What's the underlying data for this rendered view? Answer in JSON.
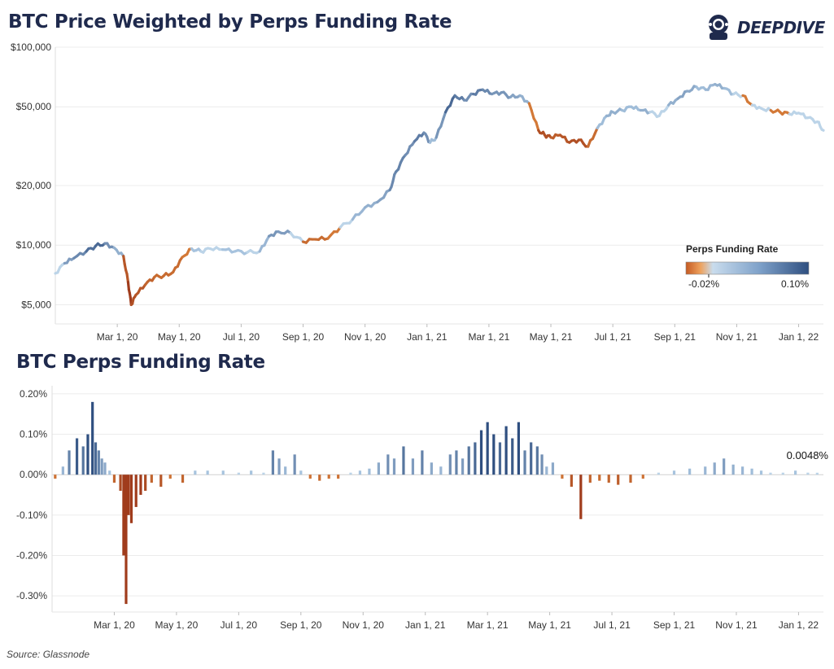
{
  "header": {
    "title": "BTC Price Weighted by Perps Funding Rate",
    "brand": "DEEPDIVE"
  },
  "lower": {
    "title": "BTC Perps Funding Rate"
  },
  "source": "Source: Glassnode",
  "colors": {
    "navy": "#1f2a4d",
    "neg_dark": "#a03c1c",
    "neg_mid": "#d2742f",
    "neutral": "#bcd4e8",
    "pos_mid": "#6f93bf",
    "pos_dark": "#2f4f80"
  },
  "chart_data": [
    {
      "type": "line",
      "title": "BTC Price Weighted by Perps Funding Rate",
      "yscale": "log",
      "ylim": [
        4000,
        100000
      ],
      "yticks": [
        5000,
        10000,
        20000,
        50000,
        100000
      ],
      "ytick_labels": [
        "$5,000",
        "$10,000",
        "$20,000",
        "$50,000",
        "$100,000"
      ],
      "xlim": [
        0,
        24.8
      ],
      "xticks": [
        2,
        4,
        6,
        8,
        10,
        12,
        14,
        16,
        18,
        20,
        22,
        24
      ],
      "xtick_labels": [
        "Mar 1, 20",
        "May 1, 20",
        "Jul 1, 20",
        "Sep 1, 20",
        "Nov 1, 20",
        "Jan 1, 21",
        "Mar 1, 21",
        "May 1, 21",
        "Jul 1, 21",
        "Sep 1, 21",
        "Nov 1, 21",
        "Jan 1, 22"
      ],
      "x_unit": "months since Jan 1, 2020",
      "legend": {
        "title": "Perps Funding Rate",
        "min_label": "-0.02%",
        "max_label": "0.10%",
        "placement": "lower-right"
      },
      "x": [
        0,
        0.3,
        0.6,
        1.0,
        1.3,
        1.6,
        1.9,
        2.2,
        2.35,
        2.45,
        2.6,
        2.9,
        3.2,
        3.5,
        3.8,
        4.1,
        4.4,
        4.7,
        5.0,
        5.4,
        5.8,
        6.2,
        6.6,
        6.9,
        7.2,
        7.6,
        8.0,
        8.4,
        8.8,
        9.2,
        9.6,
        10.0,
        10.4,
        10.8,
        11.0,
        11.3,
        11.6,
        11.9,
        12.1,
        12.3,
        12.6,
        12.9,
        13.2,
        13.5,
        13.8,
        14.1,
        14.4,
        14.7,
        15.0,
        15.3,
        15.6,
        15.8,
        16.0,
        16.3,
        16.6,
        16.9,
        17.2,
        17.5,
        17.8,
        18.0,
        18.3,
        18.6,
        18.9,
        19.2,
        19.5,
        19.8,
        20.1,
        20.4,
        20.7,
        21.0,
        21.3,
        21.6,
        21.9,
        22.2,
        22.5,
        22.8,
        23.1,
        23.4,
        23.7,
        24.0,
        24.3,
        24.6,
        24.8
      ],
      "y": [
        7200,
        8100,
        8600,
        9300,
        9900,
        10200,
        9700,
        8800,
        6500,
        5000,
        5600,
        6300,
        6900,
        7000,
        7300,
        8700,
        9600,
        9300,
        9600,
        9500,
        9300,
        9200,
        9300,
        11100,
        11700,
        11500,
        10400,
        10700,
        10800,
        12300,
        13500,
        15500,
        16500,
        19000,
        23500,
        28500,
        33500,
        37000,
        33000,
        35000,
        47000,
        57000,
        54000,
        58000,
        61000,
        58000,
        59000,
        56000,
        57000,
        52000,
        38000,
        36000,
        35000,
        36000,
        33000,
        34000,
        31500,
        39000,
        45000,
        47000,
        48000,
        50000,
        48000,
        47000,
        45000,
        51000,
        55000,
        60000,
        63000,
        61000,
        65000,
        62000,
        58000,
        57000,
        51000,
        49000,
        48000,
        47000,
        46000,
        46500,
        44000,
        42000,
        38000
      ],
      "funding_rate_pct": [
        -0.01,
        0.03,
        0.05,
        0.06,
        0.09,
        0.07,
        0.03,
        0.02,
        -0.08,
        -0.04,
        -0.03,
        -0.03,
        -0.01,
        -0.02,
        -0.01,
        -0.02,
        0.01,
        0.01,
        0.0,
        0.01,
        0.01,
        0.01,
        0.0,
        0.04,
        0.05,
        0.03,
        -0.01,
        -0.02,
        -0.01,
        0.0,
        0.01,
        0.03,
        0.02,
        0.05,
        0.06,
        0.06,
        0.04,
        0.09,
        0.01,
        0.02,
        0.07,
        0.09,
        0.04,
        0.06,
        0.07,
        0.04,
        0.05,
        0.04,
        0.03,
        0.02,
        -0.03,
        -0.04,
        -0.03,
        -0.02,
        -0.04,
        -0.03,
        -0.04,
        0.01,
        0.02,
        0.03,
        0.02,
        0.01,
        0.02,
        0.03,
        -0.01,
        0.02,
        0.03,
        0.04,
        0.02,
        0.01,
        0.03,
        0.02,
        0.01,
        0.0,
        -0.01,
        0.01,
        0.0,
        -0.01,
        0.0,
        0.01,
        0.0,
        0.01,
        0.0
      ]
    },
    {
      "type": "bar",
      "title": "BTC Perps Funding Rate",
      "ylim": [
        -0.34,
        0.22
      ],
      "yticks": [
        -0.3,
        -0.2,
        -0.1,
        0.0,
        0.1,
        0.2
      ],
      "ytick_labels": [
        "-0.30%",
        "-0.20%",
        "-0.10%",
        "0.00%",
        "0.10%",
        "0.20%"
      ],
      "xlim": [
        0,
        24.8
      ],
      "xticks": [
        2,
        4,
        6,
        8,
        10,
        12,
        14,
        16,
        18,
        20,
        22,
        24
      ],
      "xtick_labels": [
        "Mar 1, 20",
        "May 1, 20",
        "Jul 1, 20",
        "Sep 1, 20",
        "Nov 1, 20",
        "Jan 1, 21",
        "Mar 1, 21",
        "May 1, 21",
        "Jul 1, 21",
        "Sep 1, 21",
        "Nov 1, 21",
        "Jan 1, 22"
      ],
      "last_value_label": "0.0048%",
      "x": [
        0.1,
        0.35,
        0.55,
        0.8,
        1.0,
        1.15,
        1.3,
        1.4,
        1.5,
        1.6,
        1.7,
        1.85,
        2.0,
        2.2,
        2.3,
        2.38,
        2.46,
        2.55,
        2.7,
        2.85,
        3.0,
        3.2,
        3.5,
        3.8,
        4.2,
        4.6,
        5.0,
        5.5,
        6.0,
        6.4,
        6.8,
        7.1,
        7.3,
        7.5,
        7.8,
        8.0,
        8.3,
        8.6,
        8.9,
        9.2,
        9.6,
        9.9,
        10.2,
        10.5,
        10.8,
        11.0,
        11.3,
        11.6,
        11.9,
        12.2,
        12.5,
        12.8,
        13.0,
        13.2,
        13.4,
        13.6,
        13.8,
        14.0,
        14.2,
        14.4,
        14.6,
        14.8,
        15.0,
        15.2,
        15.4,
        15.6,
        15.75,
        15.9,
        16.1,
        16.4,
        16.7,
        17.0,
        17.3,
        17.6,
        17.9,
        18.2,
        18.6,
        19.0,
        19.5,
        20.0,
        20.5,
        21.0,
        21.3,
        21.6,
        21.9,
        22.2,
        22.5,
        22.8,
        23.1,
        23.5,
        23.9,
        24.3,
        24.6
      ],
      "values": [
        -0.01,
        0.02,
        0.06,
        0.09,
        0.07,
        0.1,
        0.18,
        0.08,
        0.06,
        0.04,
        0.03,
        0.01,
        -0.02,
        -0.04,
        -0.2,
        -0.32,
        -0.1,
        -0.12,
        -0.08,
        -0.05,
        -0.04,
        -0.02,
        -0.03,
        -0.01,
        -0.02,
        0.01,
        0.01,
        0.01,
        0.005,
        0.01,
        0.005,
        0.06,
        0.04,
        0.02,
        0.05,
        0.01,
        -0.01,
        -0.015,
        -0.01,
        -0.01,
        0.005,
        0.01,
        0.015,
        0.03,
        0.05,
        0.04,
        0.07,
        0.04,
        0.06,
        0.03,
        0.02,
        0.05,
        0.06,
        0.04,
        0.07,
        0.08,
        0.11,
        0.13,
        0.1,
        0.08,
        0.12,
        0.09,
        0.13,
        0.06,
        0.08,
        0.07,
        0.05,
        0.02,
        0.03,
        -0.01,
        -0.03,
        -0.11,
        -0.02,
        -0.015,
        -0.02,
        -0.025,
        -0.02,
        -0.01,
        0.005,
        0.01,
        0.015,
        0.02,
        0.03,
        0.04,
        0.025,
        0.02,
        0.015,
        0.01,
        0.005,
        0.005,
        0.01,
        0.005,
        0.0048
      ]
    }
  ]
}
